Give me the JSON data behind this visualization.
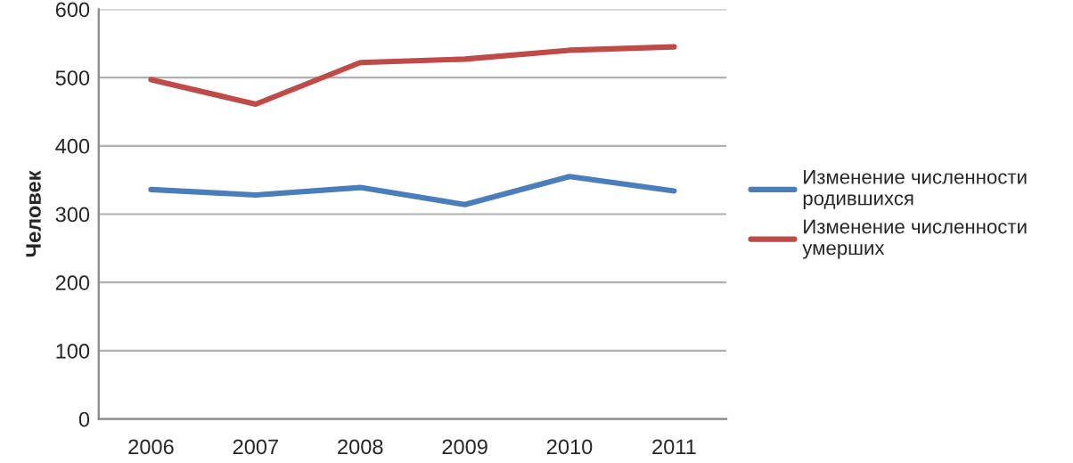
{
  "chart_data": {
    "type": "line",
    "ylabel": "Человек",
    "categories": [
      "2006",
      "2007",
      "2008",
      "2009",
      "2010",
      "2011"
    ],
    "series": [
      {
        "name": "Изменение численности родившихся",
        "color": "#4a7ebb",
        "values": [
          336,
          328,
          339,
          314,
          355,
          334
        ]
      },
      {
        "name": "Изменение численности умерших",
        "color": "#be4b48",
        "values": [
          497,
          461,
          522,
          527,
          540,
          545
        ]
      }
    ],
    "ylim": [
      0,
      600
    ],
    "yticks": [
      0,
      100,
      200,
      300,
      400,
      500,
      600
    ],
    "grid": "y",
    "legend": "right"
  }
}
